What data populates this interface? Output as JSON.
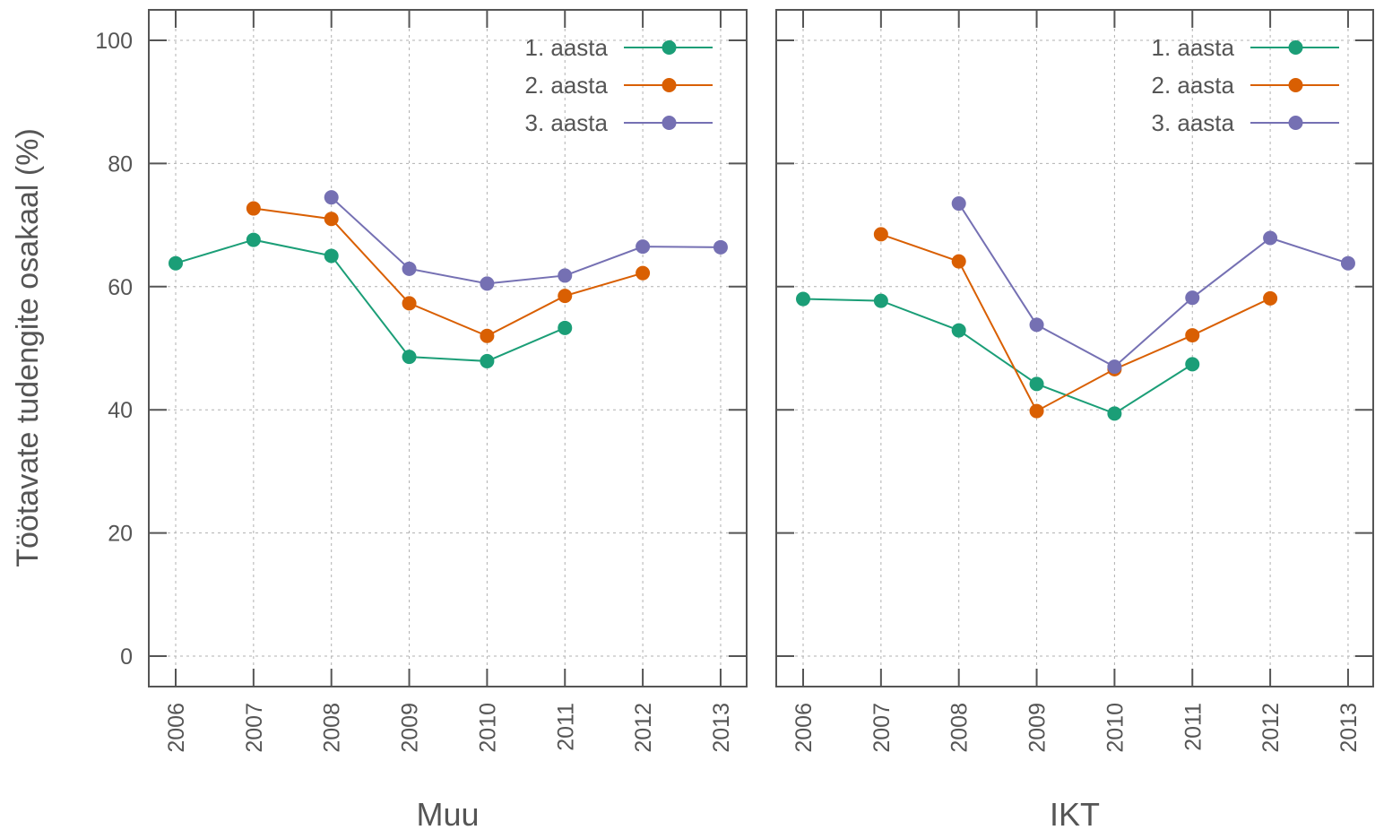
{
  "figure": {
    "ylabel": "Töötavate tudengite osakaal (%)"
  },
  "chart_data": [
    {
      "type": "line",
      "title": "Muu",
      "xlabel": "Muu",
      "ylabel": "Töötavate tudengite osakaal (%)",
      "x": [
        "2006",
        "2007",
        "2008",
        "2009",
        "2010",
        "2011",
        "2012",
        "2013"
      ],
      "ylim": [
        -5,
        105
      ],
      "yticks": [
        0,
        20,
        40,
        60,
        80,
        100
      ],
      "grid": true,
      "legend": "top-right",
      "series": [
        {
          "name": "1. aasta",
          "color": "#1b9e77",
          "values": [
            63.8,
            67.6,
            65.0,
            48.6,
            47.9,
            53.3,
            null,
            null
          ]
        },
        {
          "name": "2. aasta",
          "color": "#d95f02",
          "values": [
            null,
            72.7,
            71.0,
            57.3,
            52.0,
            58.5,
            62.2,
            null
          ]
        },
        {
          "name": "3. aasta",
          "color": "#7570b3",
          "values": [
            null,
            null,
            74.5,
            62.9,
            60.5,
            61.8,
            66.5,
            66.4
          ]
        }
      ]
    },
    {
      "type": "line",
      "title": "IKT",
      "xlabel": "IKT",
      "ylabel": "",
      "x": [
        "2006",
        "2007",
        "2008",
        "2009",
        "2010",
        "2011",
        "2012",
        "2013"
      ],
      "ylim": [
        -5,
        105
      ],
      "yticks": [
        0,
        20,
        40,
        60,
        80,
        100
      ],
      "grid": true,
      "legend": "top-right",
      "series": [
        {
          "name": "1. aasta",
          "color": "#1b9e77",
          "values": [
            58.0,
            57.7,
            52.9,
            44.2,
            39.4,
            47.4,
            null,
            null
          ]
        },
        {
          "name": "2. aasta",
          "color": "#d95f02",
          "values": [
            null,
            68.5,
            64.1,
            39.8,
            46.6,
            52.1,
            58.1,
            null
          ]
        },
        {
          "name": "3. aasta",
          "color": "#7570b3",
          "values": [
            null,
            null,
            73.5,
            53.8,
            47.0,
            58.2,
            67.9,
            63.8
          ]
        }
      ]
    }
  ]
}
